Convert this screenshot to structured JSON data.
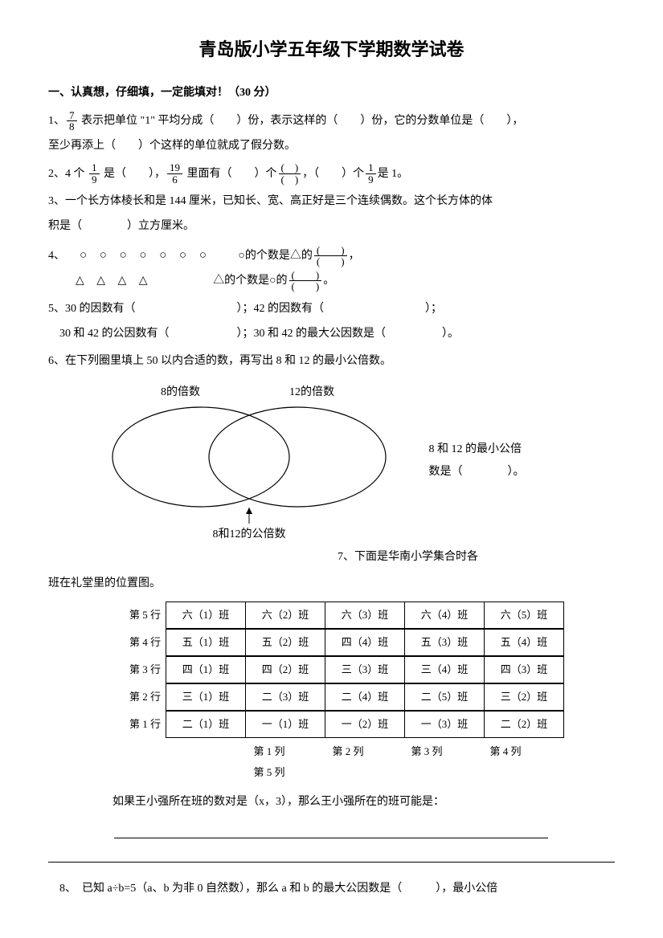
{
  "title": "青岛版小学五年级下学期数学试卷",
  "section1_heading": "一、认真想，仔细填，一定能填对！（30 分）",
  "q1": {
    "pre": "1、",
    "frac_num": "7",
    "frac_den": "8",
    "part_a": " 表示把单位 \"1\" 平均分成（　　）份，表示这样的（　　）份，它的分数单位是（　　），",
    "part_b": "至少再添上（　　）个这样的单位就成了假分数。"
  },
  "q2": {
    "pre": "2、4 个 ",
    "f1_num": "1",
    "f1_den": "9",
    "mid1": " 是（　　），",
    "f2_num": "19",
    "f2_den": "6",
    "mid2": " 里面有（　　）个",
    "f3_num": "(　)",
    "f3_den": "(　)",
    "mid3": "，（　　）个",
    "f4_num": "1",
    "f4_den": "9",
    "tail": "是 1。"
  },
  "q3": {
    "line1": "3、一个长方体棱长和是 144 厘米，已知长、宽、高正好是三个连续偶数。这个长方体的体",
    "line2": "积是（　　　　）立方厘米。"
  },
  "q4": {
    "pre": "4、",
    "circles": "○ ○ ○ ○ ○ ○ ○",
    "circ_label_pre": "○的个数是△的",
    "f_num": "(　　)",
    "f_den": "(　　)",
    "circ_label_post": "，",
    "tris": "△ △ △ △",
    "tri_label_pre": "△的个数是○的",
    "tri_label_post": "。"
  },
  "q5": {
    "line1": "5、30 的因数有（　　　　　　　　　）；42 的因数有（　　　　　　　　　）；",
    "line2": "　30 和 42 的公因数有（　　　　　　）；30 和 42 的最大公因数是（　　　　　）。"
  },
  "q6": {
    "text": "6、在下列圈里填上 50 以内合适的数，再写出 8 和 12 的最小公倍数。",
    "label_left": "8的倍数",
    "label_right": "12的倍数",
    "label_inter": "8和12的公倍数",
    "side1": "8 和 12 的最小公倍",
    "side2": "数是（　　　　）。"
  },
  "q7_intro_right": "7、下面是华南小学集合时各",
  "q7_intro_next": "班在礼堂里的位置图。",
  "seating": {
    "row_labels": [
      "第 5 行",
      "第 4 行",
      "第 3 行",
      "第 2 行",
      "第 1 行"
    ],
    "col_labels": [
      "第 1 列",
      "第 2 列",
      "第 3 列",
      "第 4 列",
      "第 5 列"
    ],
    "rows": [
      [
        "六（1）班",
        "六（2）班",
        "六（3）班",
        "六（4）班",
        "六（5）班"
      ],
      [
        "五（1）班",
        "五（2）班",
        "四（4）班",
        "五（3）班",
        "五（4）班"
      ],
      [
        "四（1）班",
        "四（2）班",
        "三（3）班",
        "三（4）班",
        "四（3）班"
      ],
      [
        "三（1）班",
        "二（3）班",
        "二（4）班",
        "二（5）班",
        "三（2）班"
      ],
      [
        "二（1）班",
        "一（1）班",
        "一（2）班",
        "一（3）班",
        "二（2）班"
      ]
    ]
  },
  "q7_after": "如果王小强所在班的数对是（x，3），那么王小强所在的班可能是：",
  "q8": "　8、　已知 a÷b=5（a、b 为非 0 自然数），那么 a 和 b 的最大公因数是（　　　），最小公倍",
  "colors": {
    "text": "#000000",
    "background": "#ffffff",
    "border": "#000000"
  }
}
